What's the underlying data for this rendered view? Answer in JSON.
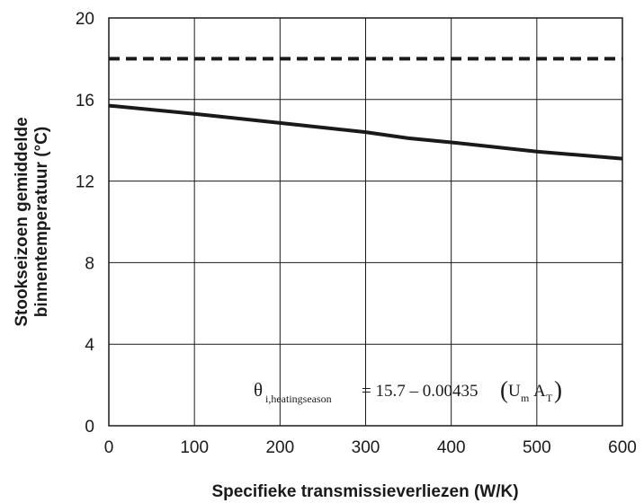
{
  "chart_data": {
    "type": "line",
    "xlabel": "Specifieke transmissieverliezen  (W/K)",
    "ylabel_lines": [
      "Stookseizoen gemiddelde",
      "binnentemperatuur (°C)"
    ],
    "xlim": [
      0,
      600
    ],
    "ylim": [
      0,
      20
    ],
    "x_ticks": [
      0,
      100,
      200,
      300,
      400,
      500,
      600
    ],
    "y_ticks": [
      0,
      4,
      8,
      12,
      16,
      20
    ],
    "grid": true,
    "series": [
      {
        "style": "solid",
        "color": "#1a1a1a",
        "x": [
          0,
          100,
          200,
          300,
          350,
          400,
          500,
          600
        ],
        "y": [
          15.7,
          15.3,
          14.85,
          14.4,
          14.1,
          13.9,
          13.45,
          13.1
        ]
      },
      {
        "style": "dashed",
        "color": "#1a1a1a",
        "x": [
          0,
          600
        ],
        "y": [
          18,
          18
        ]
      }
    ],
    "annotation": {
      "theta": "θ",
      "theta_sub": "i,heatingseason",
      "rhs": "= 15.7 – 0.00435",
      "paren_open": "(",
      "u": "U",
      "u_sub": "m",
      "a": "A",
      "a_sub": "T",
      "paren_close": ")"
    }
  }
}
